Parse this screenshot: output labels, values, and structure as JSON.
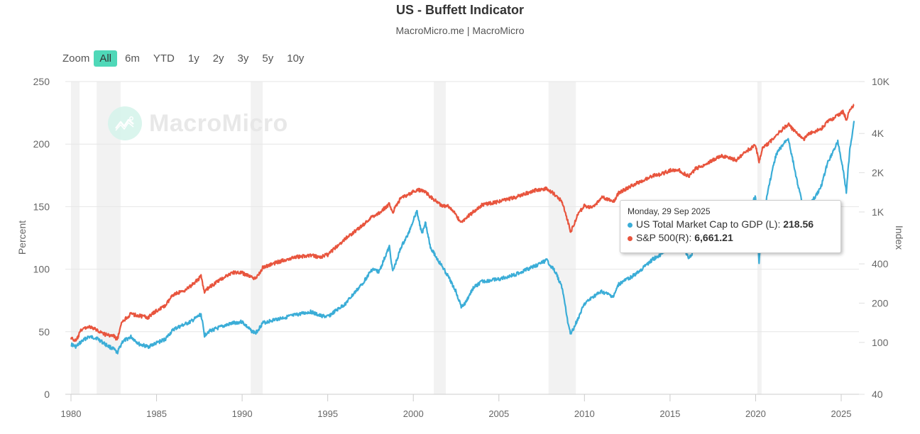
{
  "header": {
    "title": "US - Buffett Indicator",
    "subtitle": "MacroMicro.me | MacroMicro"
  },
  "zoom": {
    "label": "Zoom",
    "buttons": [
      "All",
      "6m",
      "YTD",
      "1y",
      "2y",
      "3y",
      "5y",
      "10y"
    ],
    "active": "All"
  },
  "watermark": {
    "text": "MacroMicro",
    "icon": "chart-line-logo-icon"
  },
  "tooltip": {
    "date": "Monday, 29 Sep 2025",
    "rows": [
      {
        "label": "US Total Market Cap to GDP (L): ",
        "value": "218.56",
        "color": "#3badd7"
      },
      {
        "label": "S&P 500(R): ",
        "value": "6,661.21",
        "color": "#e8553e"
      }
    ]
  },
  "chart_data": {
    "type": "line",
    "title": "US - Buffett Indicator",
    "subtitle": "MacroMicro.me | MacroMicro",
    "xlabel": "",
    "x_ticks": [
      "1980",
      "1985",
      "1990",
      "1995",
      "2000",
      "2005",
      "2010",
      "2015",
      "2020",
      "2025"
    ],
    "xlim": [
      1980,
      2026.1
    ],
    "y_left": {
      "label": "Percent",
      "ticks": [
        "0",
        "50",
        "100",
        "150",
        "200",
        "250"
      ],
      "lim": [
        0,
        250
      ],
      "scale": "linear"
    },
    "y_right": {
      "label": "Index",
      "ticks": [
        "40",
        "100",
        "200",
        "400",
        "1K",
        "2K",
        "4K",
        "10K"
      ],
      "tick_values": [
        40,
        100,
        200,
        400,
        1000,
        2000,
        4000,
        10000
      ],
      "lim": [
        40,
        10000
      ],
      "scale": "log"
    },
    "grid": true,
    "legend": "none",
    "recessions": [
      [
        1980.0,
        1980.5
      ],
      [
        1981.5,
        1982.9
      ],
      [
        1990.5,
        1991.2
      ],
      [
        2001.2,
        2001.9
      ],
      [
        2007.9,
        2009.5
      ],
      [
        2020.1,
        2020.35
      ]
    ],
    "series": [
      {
        "name": "US Total Market Cap to GDP (L)",
        "axis": "left",
        "color": "#3badd7",
        "x": [
          1980.0,
          1980.3,
          1980.6,
          1981.0,
          1981.5,
          1982.0,
          1982.5,
          1982.7,
          1983.0,
          1983.5,
          1984.0,
          1984.5,
          1985.0,
          1985.5,
          1986.0,
          1986.5,
          1987.0,
          1987.6,
          1987.8,
          1988.0,
          1989.0,
          1989.5,
          1990.0,
          1990.5,
          1990.8,
          1991.2,
          1992.0,
          1993.0,
          1994.0,
          1994.5,
          1995.0,
          1996.0,
          1997.0,
          1997.6,
          1998.0,
          1998.6,
          1998.8,
          1999.3,
          1999.7,
          2000.2,
          2000.5,
          2000.7,
          2001.0,
          2001.4,
          2001.7,
          2002.0,
          2002.5,
          2002.8,
          2003.0,
          2003.5,
          2004.0,
          2005.0,
          2006.0,
          2007.0,
          2007.8,
          2008.3,
          2008.7,
          2009.0,
          2009.2,
          2009.6,
          2010.0,
          2010.5,
          2011.0,
          2011.7,
          2012.0,
          2013.0,
          2014.0,
          2014.5,
          2015.0,
          2015.5,
          2016.1,
          2016.5,
          2017.0,
          2018.0,
          2018.9,
          2019.5,
          2020.0,
          2020.2,
          2020.4,
          2020.8,
          2021.2,
          2021.9,
          2022.4,
          2022.8,
          2023.2,
          2023.8,
          2024.2,
          2024.8,
          2025.1,
          2025.3,
          2025.5,
          2025.75
        ],
        "values": [
          40,
          38,
          42,
          46,
          45,
          40,
          36,
          33,
          42,
          46,
          40,
          38,
          41,
          44,
          52,
          55,
          58,
          64,
          47,
          50,
          55,
          57,
          58,
          51,
          49,
          57,
          60,
          63,
          66,
          63,
          62,
          72,
          88,
          100,
          98,
          118,
          98,
          118,
          128,
          147,
          128,
          138,
          118,
          108,
          102,
          95,
          82,
          70,
          72,
          85,
          90,
          92,
          96,
          102,
          107,
          98,
          85,
          60,
          48,
          60,
          72,
          78,
          82,
          78,
          88,
          96,
          108,
          112,
          120,
          128,
          108,
          118,
          128,
          142,
          130,
          148,
          158,
          105,
          140,
          168,
          192,
          205,
          172,
          148,
          152,
          165,
          185,
          202,
          180,
          162,
          195,
          218.56
        ]
      },
      {
        "name": "S&P 500(R)",
        "axis": "right",
        "color": "#e8553e",
        "x": [
          1980.0,
          1980.3,
          1980.6,
          1981.0,
          1981.5,
          1982.0,
          1982.5,
          1982.7,
          1983.0,
          1983.5,
          1984.0,
          1984.5,
          1985.0,
          1985.5,
          1986.0,
          1986.5,
          1987.0,
          1987.6,
          1987.8,
          1988.0,
          1989.0,
          1989.5,
          1990.0,
          1990.5,
          1990.8,
          1991.2,
          1992.0,
          1993.0,
          1994.0,
          1994.5,
          1995.0,
          1996.0,
          1997.0,
          1997.6,
          1998.0,
          1998.6,
          1998.8,
          1999.3,
          1999.7,
          2000.2,
          2000.5,
          2000.7,
          2001.0,
          2001.4,
          2001.7,
          2002.0,
          2002.5,
          2002.8,
          2003.0,
          2003.5,
          2004.0,
          2005.0,
          2006.0,
          2007.0,
          2007.8,
          2008.3,
          2008.7,
          2009.0,
          2009.2,
          2009.6,
          2010.0,
          2010.5,
          2011.0,
          2011.7,
          2012.0,
          2013.0,
          2014.0,
          2014.5,
          2015.0,
          2015.5,
          2016.1,
          2016.5,
          2017.0,
          2018.0,
          2018.9,
          2019.5,
          2020.0,
          2020.2,
          2020.4,
          2020.8,
          2021.2,
          2021.9,
          2022.4,
          2022.8,
          2023.2,
          2023.8,
          2024.2,
          2024.8,
          2025.1,
          2025.3,
          2025.5,
          2025.75
        ],
        "values": [
          108,
          102,
          125,
          132,
          125,
          115,
          112,
          105,
          145,
          165,
          160,
          155,
          175,
          190,
          235,
          245,
          270,
          320,
          240,
          260,
          320,
          345,
          340,
          320,
          305,
          375,
          410,
          450,
          465,
          450,
          470,
          620,
          780,
          920,
          980,
          1150,
          1000,
          1300,
          1350,
          1480,
          1450,
          1430,
          1300,
          1200,
          1100,
          1120,
          950,
          820,
          880,
          1000,
          1130,
          1200,
          1300,
          1450,
          1520,
          1350,
          1200,
          870,
          700,
          950,
          1120,
          1080,
          1300,
          1200,
          1400,
          1650,
          1900,
          1950,
          2080,
          2100,
          1870,
          2150,
          2300,
          2700,
          2500,
          2950,
          3250,
          2400,
          3100,
          3400,
          3900,
          4700,
          4000,
          3600,
          4050,
          4300,
          4900,
          5500,
          5900,
          5100,
          6000,
          6661.21
        ]
      }
    ]
  }
}
